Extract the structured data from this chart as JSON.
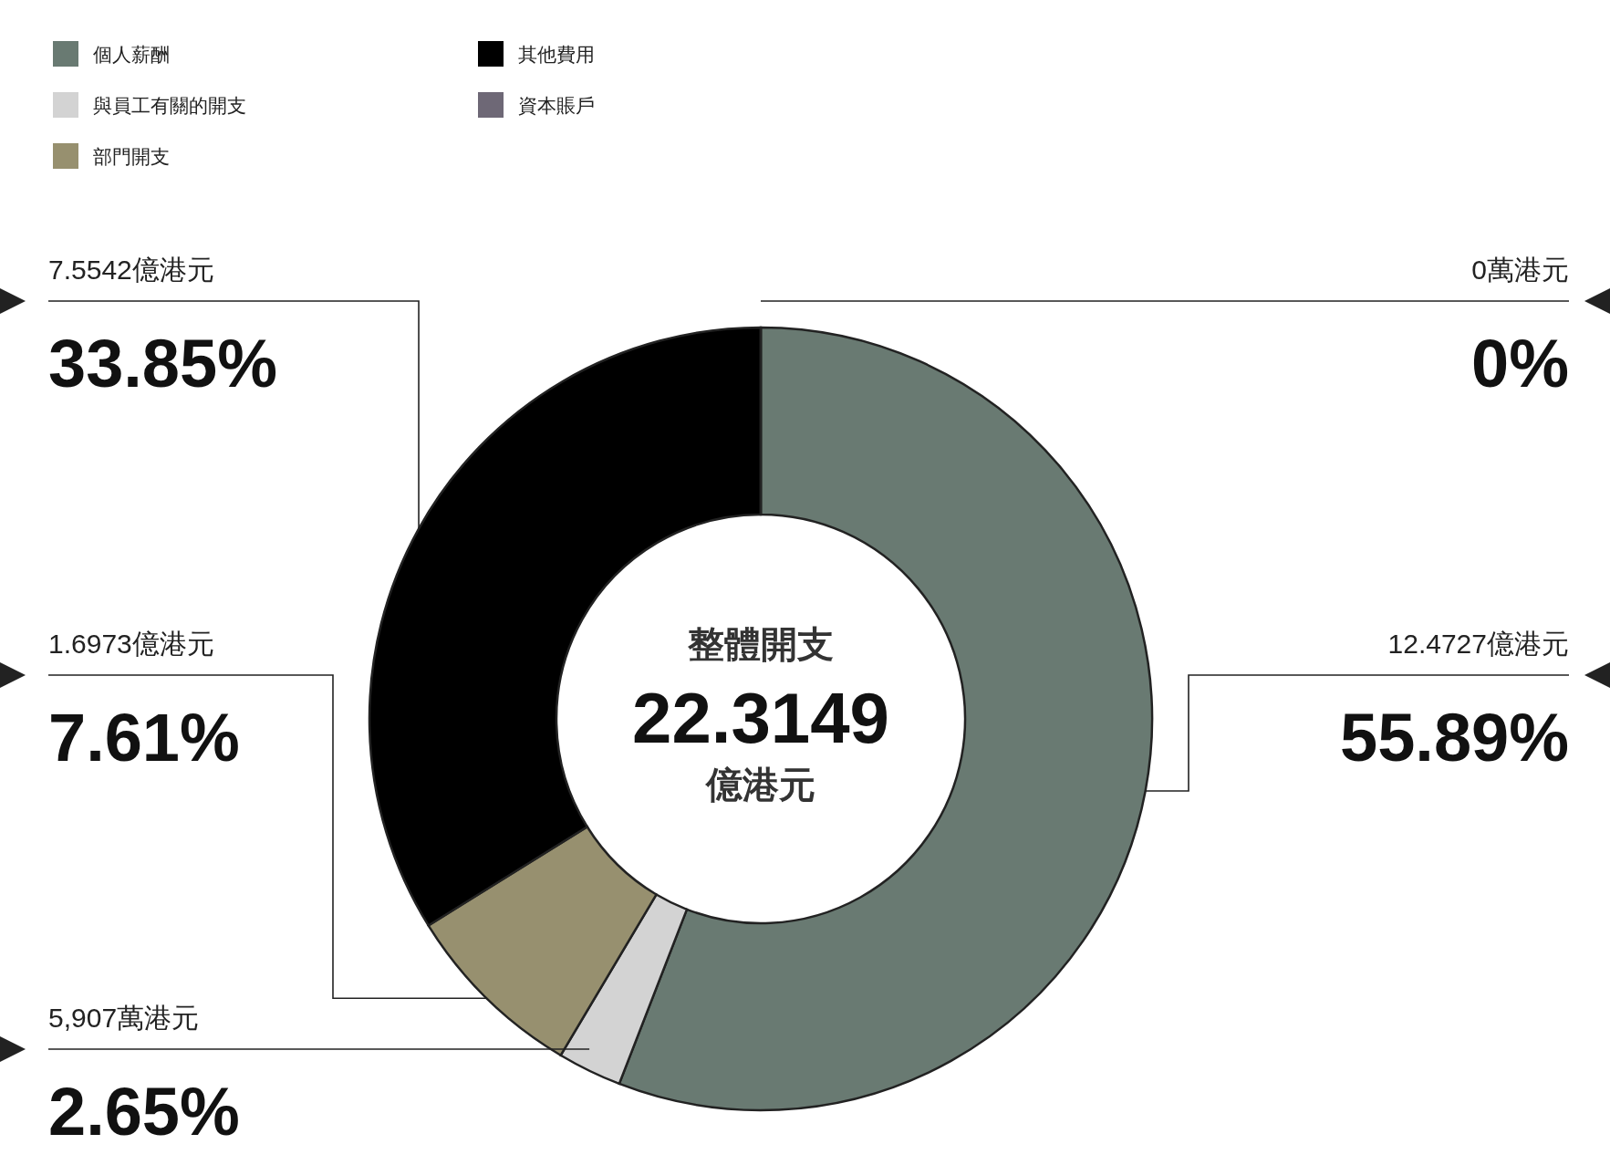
{
  "chart_data": {
    "type": "donut",
    "title": "整體開支",
    "categories": [
      "個人薪酬",
      "與員工有關的開支",
      "部門開支",
      "其他費用",
      "資本賬戶"
    ],
    "values": [
      55.89,
      2.65,
      7.61,
      33.85,
      0
    ],
    "colors": [
      "#697a72",
      "#d3d3d3",
      "#97906f",
      "#000000",
      "#6e6876"
    ],
    "value_labels": [
      "55.89%",
      "2.65%",
      "7.61%",
      "33.85%",
      "0%"
    ],
    "legend": "top left",
    "annotations": [
      "22.3149",
      "億港元",
      {
        "text": "12.4727億港元",
        "x": "個人薪酬"
      },
      {
        "text": "5,907萬港元",
        "x": "與員工有關的開支"
      },
      {
        "text": "1.6973億港元",
        "x": "部門開支"
      },
      {
        "text": "7.5542億港元",
        "x": "其他費用"
      },
      {
        "text": "0萬港元",
        "x": "資本賬戶"
      }
    ]
  }
}
